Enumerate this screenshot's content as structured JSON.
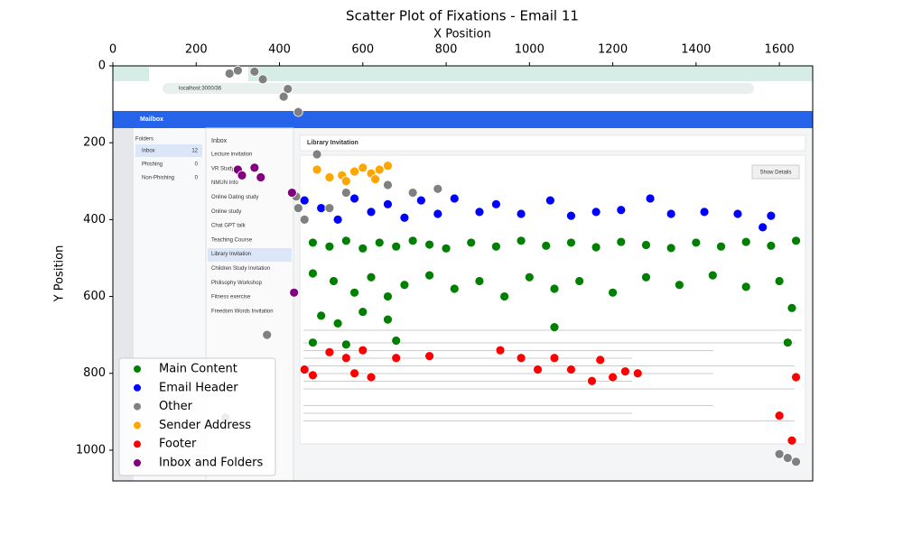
{
  "chart_data": {
    "type": "scatter",
    "title": "Scatter Plot of Fixations - Email 11",
    "x_label": "X Position",
    "y_label": "Y Position",
    "xlim": [
      0,
      1680
    ],
    "ylim": [
      1080,
      0
    ],
    "xticks": [
      0,
      200,
      400,
      600,
      800,
      1000,
      1200,
      1400,
      1600
    ],
    "yticks": [
      0,
      200,
      400,
      600,
      800,
      1000
    ],
    "legend": "lower left",
    "series": [
      {
        "name": "Main Content",
        "color": "#008000",
        "x": [
          480,
          520,
          560,
          600,
          640,
          680,
          720,
          760,
          800,
          860,
          920,
          980,
          1040,
          1100,
          1160,
          1220,
          1280,
          1340,
          1400,
          1460,
          1520,
          1580,
          1640,
          480,
          530,
          580,
          620,
          660,
          700,
          760,
          820,
          880,
          940,
          1000,
          1060,
          1120,
          1200,
          1280,
          1360,
          1440,
          1520,
          1600,
          500,
          540,
          600,
          660,
          480,
          560,
          680,
          1060,
          1630,
          1620
        ],
        "values": [
          460,
          470,
          455,
          475,
          460,
          470,
          455,
          465,
          475,
          460,
          470,
          455,
          468,
          460,
          472,
          458,
          466,
          474,
          460,
          470,
          458,
          468,
          455,
          540,
          560,
          590,
          550,
          600,
          570,
          545,
          580,
          560,
          600,
          550,
          580,
          560,
          590,
          550,
          570,
          545,
          575,
          560,
          650,
          670,
          640,
          660,
          720,
          725,
          715,
          680,
          630,
          720
        ]
      },
      {
        "name": "Email Header",
        "color": "#0000ff",
        "x": [
          460,
          500,
          540,
          580,
          620,
          660,
          700,
          740,
          780,
          820,
          880,
          920,
          980,
          1050,
          1100,
          1160,
          1220,
          1290,
          1340,
          1420,
          1500,
          1560,
          1580
        ],
        "values": [
          350,
          370,
          400,
          345,
          380,
          360,
          395,
          350,
          385,
          345,
          380,
          360,
          385,
          350,
          390,
          380,
          375,
          345,
          385,
          380,
          385,
          420,
          390
        ]
      },
      {
        "name": "Other",
        "color": "#808080",
        "x": [
          280,
          300,
          340,
          360,
          420,
          410,
          445,
          490,
          440,
          445,
          460,
          520,
          560,
          660,
          720,
          780,
          370,
          270,
          1600,
          1620,
          1640
        ],
        "values": [
          20,
          12,
          15,
          35,
          60,
          80,
          120,
          230,
          340,
          370,
          400,
          370,
          330,
          310,
          330,
          320,
          700,
          915,
          1010,
          1020,
          1030
        ]
      },
      {
        "name": "Sender Address",
        "color": "#ffa500",
        "x": [
          490,
          520,
          550,
          580,
          600,
          620,
          640,
          660,
          560,
          630
        ],
        "values": [
          270,
          290,
          285,
          275,
          265,
          280,
          270,
          260,
          300,
          295
        ]
      },
      {
        "name": "Footer",
        "color": "#ff0000",
        "x": [
          460,
          480,
          520,
          560,
          600,
          580,
          620,
          680,
          760,
          930,
          980,
          1020,
          1060,
          1100,
          1150,
          1170,
          1200,
          1230,
          1260,
          1640,
          1600,
          1630
        ],
        "values": [
          790,
          805,
          745,
          760,
          740,
          800,
          810,
          760,
          755,
          740,
          760,
          790,
          760,
          790,
          820,
          765,
          810,
          795,
          800,
          810,
          910,
          975
        ]
      },
      {
        "name": "Inbox and Folders",
        "color": "#800080",
        "x": [
          300,
          310,
          340,
          355,
          430,
          435
        ],
        "values": [
          270,
          285,
          265,
          290,
          330,
          590
        ]
      }
    ]
  },
  "screenshot": {
    "address": "localhost:3000/36",
    "app_title": "Mailbox",
    "folders_title": "Folders",
    "folders": [
      {
        "name": "Inbox",
        "count": 12
      },
      {
        "name": "Phishing",
        "count": 0
      },
      {
        "name": "Non-Phishing",
        "count": 0
      }
    ],
    "list_title": "Inbox",
    "emails": [
      "Lecture invitation",
      "VR Study",
      "NMUN Info",
      "Online Dating study",
      "Online study",
      "Chat GPT talk",
      "Teaching Course",
      "Library Invitation",
      "Children Study Invitation",
      "Philisophy Workshop",
      "Fitness exercise",
      "Freedom Words Invitation"
    ],
    "subject": "Library Invitation",
    "button": "Show Details"
  }
}
